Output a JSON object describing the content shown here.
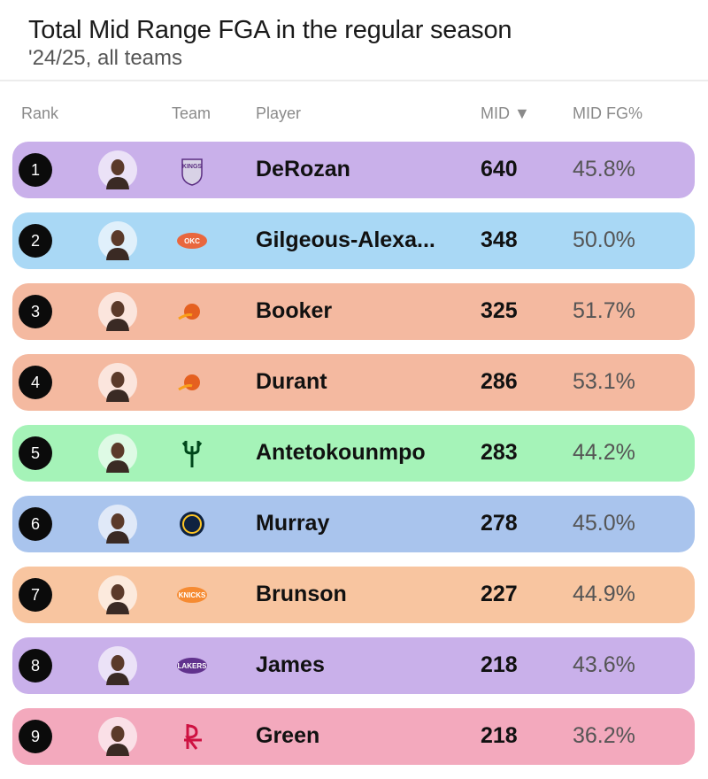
{
  "header": {
    "title": "Total Mid Range FGA in the regular season",
    "subtitle": "'24/25, all teams"
  },
  "columns": {
    "rank": "Rank",
    "team": "Team",
    "player": "Player",
    "mid": "MID ▼",
    "fg": "MID FG%"
  },
  "rows": [
    {
      "rank": "1",
      "player": "DeRozan",
      "mid": "640",
      "fg": "45.8%",
      "color": "#c9b0ea",
      "logo": "kings-logo",
      "logo_text": "KINGS",
      "logo_color": "#5a2d81"
    },
    {
      "rank": "2",
      "player": "Gilgeous-Alexa...",
      "mid": "348",
      "fg": "50.0%",
      "color": "#a9d8f5",
      "logo": "thunder-logo",
      "logo_text": "OKC",
      "logo_color": "#ef5b2a"
    },
    {
      "rank": "3",
      "player": "Booker",
      "mid": "325",
      "fg": "51.7%",
      "color": "#f4b9a0",
      "logo": "suns-logo",
      "logo_text": "",
      "logo_color": "#e56020"
    },
    {
      "rank": "4",
      "player": "Durant",
      "mid": "286",
      "fg": "53.1%",
      "color": "#f4b9a0",
      "logo": "suns-logo",
      "logo_text": "",
      "logo_color": "#e56020"
    },
    {
      "rank": "5",
      "player": "Antetokounmpo",
      "mid": "283",
      "fg": "44.2%",
      "color": "#a5f3b8",
      "logo": "bucks-logo",
      "logo_text": "",
      "logo_color": "#00471b"
    },
    {
      "rank": "6",
      "player": "Murray",
      "mid": "278",
      "fg": "45.0%",
      "color": "#a9c4ed",
      "logo": "nuggets-logo",
      "logo_text": "",
      "logo_color": "#0e2240"
    },
    {
      "rank": "7",
      "player": "Brunson",
      "mid": "227",
      "fg": "44.9%",
      "color": "#f8c5a0",
      "logo": "knicks-logo",
      "logo_text": "KNICKS",
      "logo_color": "#f58426"
    },
    {
      "rank": "8",
      "player": "James",
      "mid": "218",
      "fg": "43.6%",
      "color": "#c9b0ea",
      "logo": "lakers-logo",
      "logo_text": "LAKERS",
      "logo_color": "#552583"
    },
    {
      "rank": "9",
      "player": "Green",
      "mid": "218",
      "fg": "36.2%",
      "color": "#f3a9bd",
      "logo": "rockets-logo",
      "logo_text": "",
      "logo_color": "#ce1141"
    }
  ]
}
